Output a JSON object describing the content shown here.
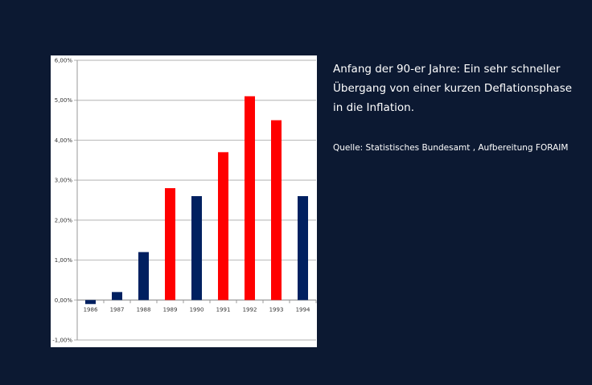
{
  "description": "Anfang der 90-er Jahre: Ein sehr schneller Übergang von einer kurzen Deflationsphase in die Inflation.",
  "source": "Quelle: Statistisches Bundesamt , Aufbereitung FORAIM",
  "chart_data": {
    "type": "bar",
    "title": "",
    "xlabel": "",
    "ylabel": "",
    "categories": [
      "1986",
      "1987",
      "1988",
      "1989",
      "1990",
      "1991",
      "1992",
      "1993",
      "1994"
    ],
    "values": [
      -0.1,
      0.2,
      1.2,
      2.8,
      2.6,
      3.7,
      5.1,
      4.5,
      2.6
    ],
    "bar_colors": [
      "#002060",
      "#002060",
      "#002060",
      "#ff0000",
      "#002060",
      "#ff0000",
      "#ff0000",
      "#ff0000",
      "#002060"
    ],
    "ylim": [
      -1,
      6
    ],
    "yticks": [
      -1,
      0,
      1,
      2,
      3,
      4,
      5,
      6
    ],
    "ytick_labels": [
      "-1,00%",
      "0,00%",
      "1,00%",
      "2,00%",
      "3,00%",
      "4,00%",
      "5,00%",
      "6,00%"
    ],
    "grid": true,
    "legend": "none"
  }
}
